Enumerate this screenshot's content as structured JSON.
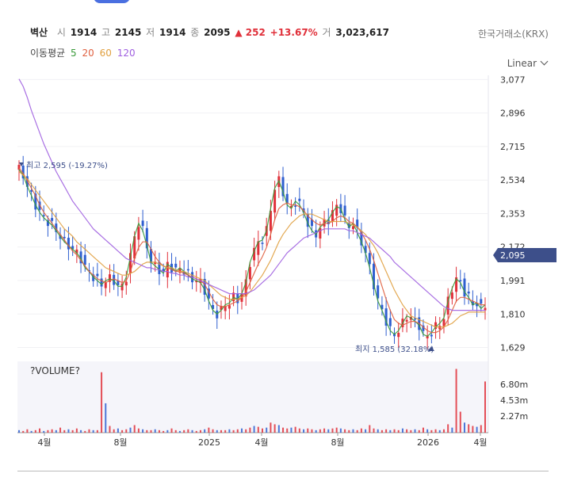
{
  "header": {
    "name": "벽산",
    "open_label": "시",
    "open": "1914",
    "high_label": "고",
    "high": "2145",
    "low_label": "저",
    "low": "1914",
    "close_label": "종",
    "close": "2095",
    "change": "▲ 252",
    "change_pct": "+13.67%",
    "volume_label": "거",
    "volume": "3,023,617"
  },
  "exchange": "한국거래소(KRX)",
  "ma_legend": {
    "label": "이동평균",
    "items": [
      "5",
      "20",
      "60",
      "120"
    ]
  },
  "scale_label": "Linear",
  "colors": {
    "up": "#e0303a",
    "down": "#2f5fd0",
    "ma5": "#3a9a3a",
    "ma20": "#e06040",
    "ma60": "#e0a040",
    "ma120": "#a060e0",
    "accent": "#3d4f8a"
  },
  "chart_data": [
    {
      "type": "line",
      "title": "",
      "x_ticks": [
        "4월",
        "8월",
        "2025",
        "4월",
        "8월",
        "2026",
        "4월"
      ],
      "y_ticks": [
        3077,
        2896,
        2715,
        2534,
        2353,
        2172,
        1991,
        1810,
        1629
      ],
      "ylim": [
        1580,
        3100
      ],
      "last_price": "2,095",
      "last_price_value": 2095,
      "max_annotation": "최고 2,595 (-19.27%)",
      "min_annotation": "최지 1,585 (32.18%)",
      "series": [
        {
          "name": "5",
          "values": [
            2590,
            2560,
            2500,
            2450,
            2400,
            2360,
            2330,
            2310,
            2290,
            2260,
            2230,
            2200,
            2180,
            2160,
            2140,
            2110,
            2060,
            2040,
            2010,
            1990,
            1970,
            1990,
            2000,
            1990,
            1960,
            1960,
            2010,
            2120,
            2230,
            2300,
            2260,
            2180,
            2090,
            2070,
            2050,
            2030,
            2080,
            2060,
            2040,
            2060,
            2040,
            2020,
            2000,
            1990,
            1980,
            1940,
            1880,
            1830,
            1810,
            1830,
            1860,
            1870,
            1900,
            1890,
            1920,
            1980,
            2090,
            2150,
            2200,
            2210,
            2260,
            2380,
            2490,
            2530,
            2470,
            2400,
            2380,
            2420,
            2400,
            2360,
            2300,
            2260,
            2240,
            2280,
            2300,
            2320,
            2360,
            2390,
            2380,
            2320,
            2280,
            2300,
            2250,
            2200,
            2140,
            2060,
            1970,
            1880,
            1830,
            1770,
            1720,
            1700,
            1720,
            1760,
            1800,
            1790,
            1770,
            1750,
            1700,
            1690,
            1710,
            1740,
            1760,
            1790,
            1880,
            1950,
            2000,
            1980,
            1930,
            1900,
            1860,
            1870,
            1840,
            1860
          ]
        },
        {
          "name": "20",
          "values": [
            2600,
            2570,
            2530,
            2490,
            2450,
            2400,
            2360,
            2330,
            2300,
            2270,
            2240,
            2210,
            2180,
            2150,
            2130,
            2100,
            2070,
            2040,
            2020,
            2000,
            1990,
            1980,
            1990,
            2000,
            1990,
            1980,
            1990,
            2040,
            2110,
            2170,
            2200,
            2200,
            2160,
            2120,
            2090,
            2070,
            2060,
            2050,
            2040,
            2040,
            2030,
            2020,
            2010,
            2000,
            1990,
            1970,
            1930,
            1890,
            1860,
            1850,
            1850,
            1860,
            1870,
            1880,
            1900,
            1930,
            1980,
            2030,
            2080,
            2120,
            2170,
            2240,
            2320,
            2380,
            2400,
            2410,
            2400,
            2400,
            2390,
            2370,
            2340,
            2320,
            2300,
            2290,
            2300,
            2300,
            2310,
            2330,
            2340,
            2330,
            2310,
            2300,
            2280,
            2250,
            2210,
            2160,
            2100,
            2030,
            1960,
            1890,
            1830,
            1780,
            1760,
            1750,
            1760,
            1770,
            1770,
            1760,
            1740,
            1720,
            1710,
            1710,
            1720,
            1740,
            1780,
            1830,
            1880,
            1900,
            1900,
            1890,
            1880,
            1870,
            1860,
            1860
          ]
        },
        {
          "name": "60",
          "values": [
            2580,
            2560,
            2540,
            2510,
            2480,
            2450,
            2420,
            2390,
            2360,
            2330,
            2300,
            2270,
            2250,
            2230,
            2200,
            2180,
            2160,
            2140,
            2120,
            2100,
            2080,
            2060,
            2050,
            2040,
            2030,
            2020,
            2020,
            2030,
            2040,
            2060,
            2080,
            2090,
            2090,
            2090,
            2080,
            2070,
            2060,
            2060,
            2050,
            2040,
            2040,
            2030,
            2020,
            2010,
            2000,
            1990,
            1970,
            1950,
            1930,
            1910,
            1900,
            1890,
            1890,
            1890,
            1900,
            1910,
            1930,
            1960,
            1990,
            2020,
            2060,
            2100,
            2150,
            2200,
            2240,
            2270,
            2300,
            2320,
            2340,
            2350,
            2350,
            2350,
            2340,
            2330,
            2320,
            2310,
            2310,
            2310,
            2310,
            2310,
            2300,
            2290,
            2280,
            2260,
            2240,
            2210,
            2180,
            2140,
            2090,
            2040,
            1990,
            1940,
            1900,
            1860,
            1830,
            1800,
            1790,
            1780,
            1770,
            1760,
            1750,
            1740,
            1740,
            1740,
            1750,
            1760,
            1780,
            1800,
            1810,
            1820,
            1820,
            1820,
            1820,
            1820
          ]
        },
        {
          "name": "120",
          "values": [
            3080,
            3040,
            2980,
            2910,
            2850,
            2790,
            2730,
            2680,
            2630,
            2580,
            2540,
            2500,
            2460,
            2420,
            2390,
            2360,
            2330,
            2300,
            2270,
            2250,
            2230,
            2210,
            2190,
            2170,
            2150,
            2130,
            2110,
            2100,
            2090,
            2080,
            2070,
            2060,
            2060,
            2050,
            2050,
            2040,
            2040,
            2030,
            2030,
            2020,
            2020,
            2010,
            2010,
            2000,
            1990,
            1980,
            1970,
            1960,
            1950,
            1940,
            1930,
            1920,
            1920,
            1920,
            1920,
            1920,
            1930,
            1940,
            1960,
            1980,
            2000,
            2020,
            2050,
            2080,
            2110,
            2140,
            2160,
            2180,
            2200,
            2220,
            2230,
            2240,
            2250,
            2260,
            2270,
            2270,
            2270,
            2270,
            2270,
            2270,
            2260,
            2260,
            2250,
            2240,
            2230,
            2220,
            2200,
            2180,
            2160,
            2140,
            2120,
            2090,
            2070,
            2050,
            2030,
            2010,
            1990,
            1970,
            1950,
            1930,
            1910,
            1890,
            1870,
            1850,
            1840,
            1830,
            1830,
            1830,
            1830,
            1830,
            1830,
            1830,
            1830,
            1830
          ]
        }
      ]
    },
    {
      "type": "bar",
      "title": "?VOLUME?",
      "y_ticks": [
        "6.80m",
        "4.53m",
        "2.27m"
      ],
      "ylim": [
        0,
        8500000
      ],
      "x_ticks": [
        "4월",
        "8월",
        "2025",
        "4월",
        "8월",
        "2026",
        "4월"
      ],
      "values": [
        0.3,
        0.2,
        0.4,
        0.2,
        0.3,
        0.5,
        0.2,
        0.3,
        0.4,
        0.3,
        0.6,
        0.3,
        0.4,
        0.3,
        0.5,
        0.3,
        0.2,
        0.4,
        0.3,
        0.3,
        7.2,
        3.5,
        0.8,
        0.4,
        0.5,
        0.3,
        0.4,
        0.6,
        0.9,
        0.5,
        0.4,
        0.3,
        0.3,
        0.4,
        0.3,
        0.2,
        0.3,
        0.5,
        0.3,
        0.2,
        0.3,
        0.4,
        0.3,
        0.2,
        0.3,
        0.4,
        0.6,
        0.4,
        0.3,
        0.3,
        0.3,
        0.4,
        0.3,
        0.4,
        0.5,
        0.4,
        0.6,
        0.8,
        0.7,
        0.5,
        0.6,
        1.2,
        1.0,
        0.9,
        0.6,
        0.5,
        0.6,
        0.7,
        0.5,
        0.4,
        0.5,
        0.4,
        0.3,
        0.4,
        0.5,
        0.4,
        0.5,
        0.6,
        0.5,
        0.4,
        0.3,
        0.4,
        0.3,
        0.5,
        0.4,
        0.9,
        0.5,
        0.4,
        0.3,
        0.4,
        0.3,
        0.4,
        0.3,
        0.5,
        0.4,
        0.3,
        0.4,
        0.3,
        0.6,
        0.4,
        0.3,
        0.4,
        0.3,
        0.4,
        1.0,
        0.6,
        7.6,
        2.5,
        1.2,
        1.0,
        0.8,
        0.7,
        0.9,
        6.1
      ]
    }
  ]
}
